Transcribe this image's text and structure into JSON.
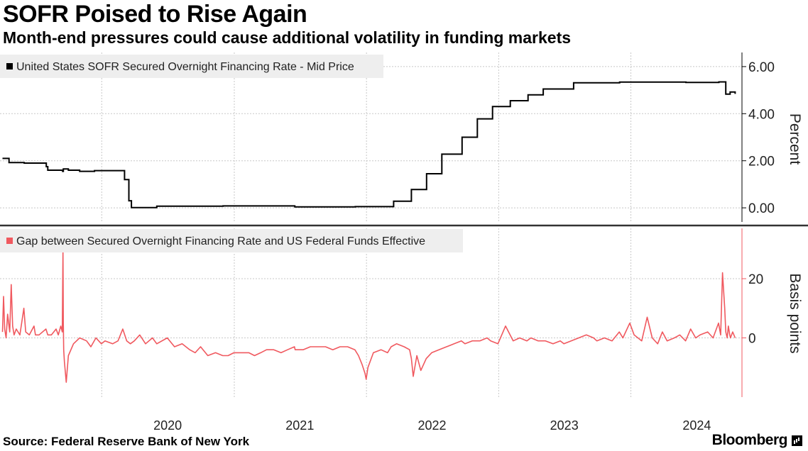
{
  "title": "SOFR Poised to Rise Again",
  "subtitle": "Month-end pressures could cause additional volatility in funding markets",
  "source": "Source: Federal Reserve Bank of New York",
  "brand": "Bloomberg",
  "colors": {
    "sofr": "#000000",
    "gap": "#f0595f",
    "grid": "#c8c8c8",
    "legend_bg": "#eeeeee"
  },
  "chart_data": [
    {
      "type": "line",
      "ylabel": "Percent",
      "ylim": [
        -0.6,
        6.6
      ],
      "yticks": [
        "6.00",
        "4.00",
        "2.00",
        "0.00"
      ],
      "ytick_values": [
        6,
        4,
        2,
        0
      ],
      "grid": true,
      "legend_position": "top-left",
      "series": [
        {
          "name": "United States SOFR Secured Overnight Financing Rate - Mid Price",
          "x": [
            "2019-04-02",
            "2019-04-20",
            "2019-06-01",
            "2019-08-01",
            "2019-08-05",
            "2019-09-15",
            "2019-09-17",
            "2019-10-01",
            "2019-11-01",
            "2019-12-12",
            "2020-02-28",
            "2020-03-04",
            "2020-03-16",
            "2020-03-23",
            "2020-06-01",
            "2020-12-01",
            "2021-06-17",
            "2021-12-01",
            "2022-03-17",
            "2022-05-05",
            "2022-06-16",
            "2022-07-28",
            "2022-09-22",
            "2022-11-03",
            "2022-12-15",
            "2023-02-02",
            "2023-03-23",
            "2023-05-04",
            "2023-07-27",
            "2023-12-01",
            "2024-06-01",
            "2024-08-31",
            "2024-09-19",
            "2024-10-01",
            "2024-10-15"
          ],
          "values": [
            2.1,
            1.92,
            1.9,
            1.75,
            1.6,
            1.55,
            1.65,
            1.6,
            1.55,
            1.58,
            1.58,
            1.2,
            0.3,
            0.01,
            0.07,
            0.08,
            0.04,
            0.05,
            0.28,
            0.78,
            1.45,
            2.28,
            3.0,
            3.78,
            4.3,
            4.55,
            4.8,
            5.05,
            5.31,
            5.34,
            5.33,
            5.35,
            4.83,
            4.92,
            4.84
          ]
        }
      ]
    },
    {
      "type": "line",
      "ylabel": "Basis points",
      "ylim": [
        -20,
        37
      ],
      "yticks": [
        "20",
        "0"
      ],
      "ytick_values": [
        20,
        0
      ],
      "grid": true,
      "legend_position": "top-left",
      "categories_x": [
        "2020",
        "2021",
        "2022",
        "2023",
        "2024"
      ],
      "series": [
        {
          "name": "Gap between Secured Overnight Financing Rate and US Federal Funds Effective",
          "x": [
            "2019-04-02",
            "2019-04-05",
            "2019-04-08",
            "2019-04-12",
            "2019-04-16",
            "2019-04-22",
            "2019-04-26",
            "2019-04-30",
            "2019-05-04",
            "2019-05-10",
            "2019-05-20",
            "2019-05-31",
            "2019-06-05",
            "2019-06-15",
            "2019-06-28",
            "2019-07-02",
            "2019-07-12",
            "2019-07-31",
            "2019-08-05",
            "2019-08-15",
            "2019-08-28",
            "2019-09-03",
            "2019-09-10",
            "2019-09-14",
            "2019-09-16",
            "2019-09-17",
            "2019-09-18",
            "2019-09-20",
            "2019-09-25",
            "2019-10-01",
            "2019-10-15",
            "2019-11-01",
            "2019-11-20",
            "2019-12-02",
            "2019-12-16",
            "2019-12-31",
            "2020-01-10",
            "2020-01-31",
            "2020-02-15",
            "2020-02-28",
            "2020-03-10",
            "2020-03-20",
            "2020-03-31",
            "2020-04-15",
            "2020-05-01",
            "2020-05-20",
            "2020-06-01",
            "2020-06-30",
            "2020-07-20",
            "2020-08-10",
            "2020-08-31",
            "2020-09-15",
            "2020-09-30",
            "2020-10-20",
            "2020-11-10",
            "2020-11-30",
            "2020-12-15",
            "2020-12-31",
            "2021-01-20",
            "2021-02-10",
            "2021-02-26",
            "2021-03-15",
            "2021-03-31",
            "2021-04-20",
            "2021-05-10",
            "2021-05-28",
            "2021-06-16",
            "2021-06-18",
            "2021-07-10",
            "2021-07-30",
            "2021-08-20",
            "2021-09-10",
            "2021-09-30",
            "2021-10-20",
            "2021-11-10",
            "2021-11-30",
            "2021-12-10",
            "2021-12-20",
            "2021-12-28",
            "2021-12-31",
            "2022-01-05",
            "2022-01-20",
            "2022-02-10",
            "2022-02-28",
            "2022-03-10",
            "2022-03-25",
            "2022-04-15",
            "2022-04-30",
            "2022-05-05",
            "2022-05-10",
            "2022-05-20",
            "2022-05-31",
            "2022-06-15",
            "2022-06-30",
            "2022-07-20",
            "2022-08-10",
            "2022-08-31",
            "2022-09-20",
            "2022-09-30",
            "2022-10-20",
            "2022-11-10",
            "2022-11-30",
            "2022-12-10",
            "2022-12-30",
            "2023-01-20",
            "2023-02-10",
            "2023-02-28",
            "2023-03-20",
            "2023-03-31",
            "2023-04-20",
            "2023-05-10",
            "2023-05-31",
            "2023-06-20",
            "2023-06-30",
            "2023-07-20",
            "2023-08-10",
            "2023-08-31",
            "2023-09-20",
            "2023-09-29",
            "2023-10-20",
            "2023-11-10",
            "2023-11-30",
            "2023-12-10",
            "2023-12-29",
            "2024-01-10",
            "2024-01-31",
            "2024-02-15",
            "2024-02-29",
            "2024-03-15",
            "2024-03-28",
            "2024-04-10",
            "2024-04-30",
            "2024-05-15",
            "2024-05-31",
            "2024-06-14",
            "2024-06-28",
            "2024-07-10",
            "2024-07-31",
            "2024-08-15",
            "2024-08-30",
            "2024-09-05",
            "2024-09-10",
            "2024-09-16",
            "2024-09-19",
            "2024-09-23",
            "2024-09-26",
            "2024-09-30",
            "2024-10-02",
            "2024-10-08",
            "2024-10-15"
          ],
          "values": [
            2,
            14,
            3,
            0,
            8,
            2,
            18,
            4,
            1,
            3,
            1,
            10,
            2,
            1,
            4,
            1,
            1,
            3,
            1,
            1,
            3,
            1,
            4,
            2,
            29,
            5,
            -4,
            -8,
            -15,
            -6,
            -2,
            0,
            -1,
            -3,
            0,
            -2,
            -1,
            -2,
            -1,
            3,
            -1,
            -2,
            -1,
            1,
            -2,
            0,
            -2,
            0,
            -3,
            -2,
            -4,
            -5,
            -3,
            -6,
            -5,
            -6,
            -6,
            -5,
            -5,
            -5,
            -6,
            -5,
            -4,
            -4,
            -5,
            -4,
            -3,
            -4,
            -4,
            -3,
            -3,
            -3,
            -4,
            -3,
            -3,
            -4,
            -6,
            -9,
            -12,
            -14,
            -10,
            -5,
            -4,
            -5,
            -3,
            -2,
            -3,
            -4,
            -7,
            -13,
            -6,
            -11,
            -7,
            -5,
            -4,
            -3,
            -2,
            -1,
            -2,
            -1,
            -1,
            0,
            -1,
            -2,
            4,
            -1,
            0,
            -1,
            0,
            -1,
            -1,
            -2,
            -1,
            -2,
            -1,
            0,
            1,
            0,
            -1,
            0,
            -1,
            2,
            0,
            5,
            1,
            -1,
            7,
            0,
            -2,
            2,
            -1,
            0,
            1,
            -1,
            3,
            0,
            1,
            2,
            0,
            5,
            1,
            22,
            10,
            2,
            0,
            4,
            1,
            0,
            2,
            0
          ]
        }
      ]
    }
  ]
}
